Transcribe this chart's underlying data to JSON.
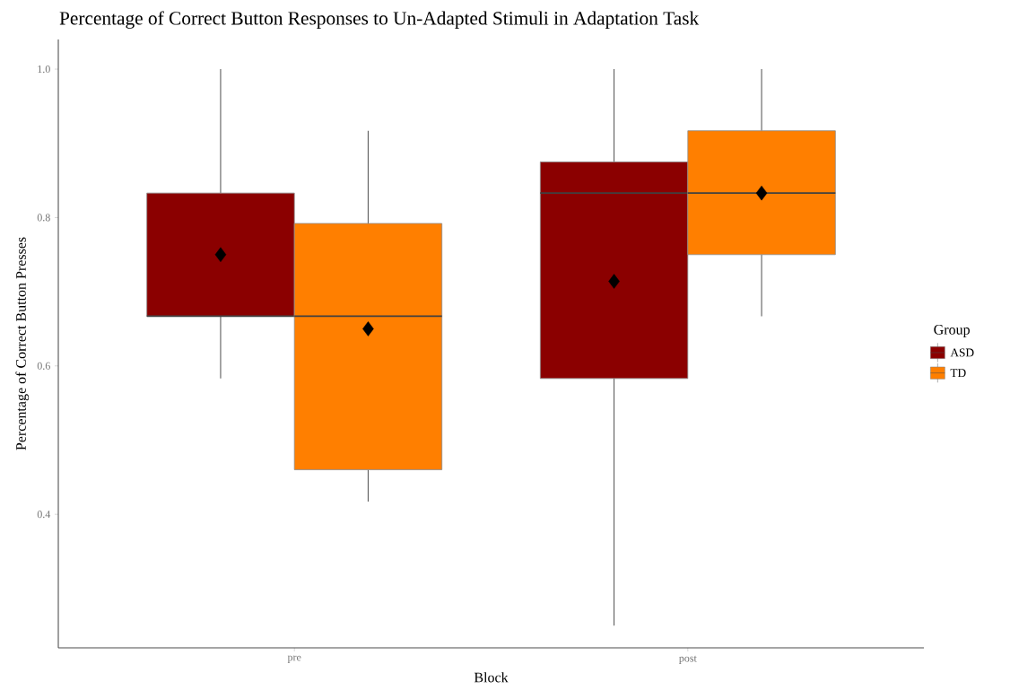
{
  "chart_data": {
    "type": "box",
    "title": "Percentage of Correct Button Responses to Un-Adapted Stimuli in Adaptation Task",
    "xlabel": "Block",
    "ylabel": "Percentage of Correct Button Presses",
    "legend_title": "Group",
    "legend": "right",
    "marker": "diamond",
    "categories": [
      "pre",
      "post"
    ],
    "ylim": [
      0.22,
      1.04
    ],
    "yticks": [
      0.4,
      0.6,
      0.8,
      {
        "value": 1,
        "label": "1.0"
      }
    ],
    "series": [
      {
        "name": "ASD",
        "color": "#8b0000",
        "boxes": [
          {
            "low": 0.583,
            "q1": 0.667,
            "median": 0.667,
            "q3": 0.833,
            "high": 1.0,
            "mean": 0.75
          },
          {
            "low": 0.25,
            "q1": 0.583,
            "median": 0.833,
            "q3": 0.875,
            "high": 1.0,
            "mean": 0.714
          }
        ]
      },
      {
        "name": "TD",
        "color": "#ff7f00",
        "boxes": [
          {
            "low": 0.417,
            "q1": 0.46,
            "median": 0.667,
            "q3": 0.792,
            "high": 0.917,
            "mean": 0.65
          },
          {
            "low": 0.667,
            "q1": 0.75,
            "median": 0.833,
            "q3": 0.917,
            "high": 1.0,
            "mean": 0.833
          }
        ]
      }
    ]
  }
}
